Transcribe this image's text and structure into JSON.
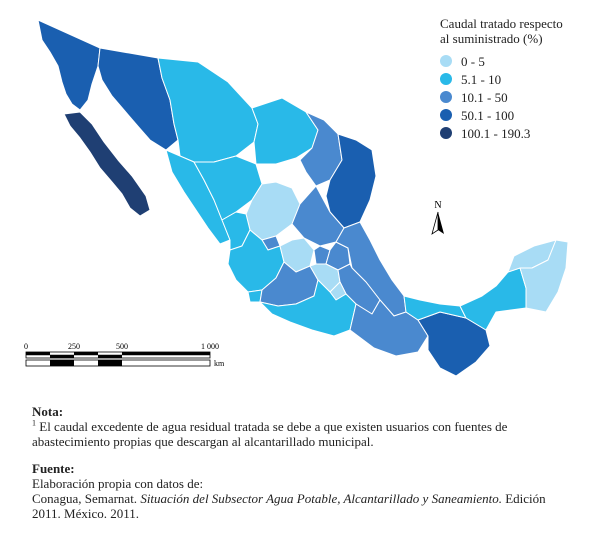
{
  "legend": {
    "title_line1": "Caudal tratado respecto",
    "title_line2": "al suministrado (%)",
    "classes": [
      {
        "label": "0 - 5",
        "color": "#a8dcf5"
      },
      {
        "label": "5.1 - 10",
        "color": "#29b9e8"
      },
      {
        "label": "10.1 - 50",
        "color": "#4a89cf"
      },
      {
        "label": "50.1 - 100",
        "color": "#1a5fb0"
      },
      {
        "label": "100.1 - 190.3",
        "color": "#1f3f73"
      }
    ]
  },
  "north_arrow": {
    "label": "N"
  },
  "scale_bar": {
    "ticks": [
      "0",
      "250",
      "500",
      "1 000"
    ],
    "unit": "km"
  },
  "note": {
    "heading": "Nota:",
    "marker": "1",
    "text": "El caudal excedente de agua residual tratada se debe a que existen usuarios con fuentes de abastecimiento propias que descargan al alcantarillado municipal."
  },
  "source": {
    "heading": "Fuente:",
    "line1": "Elaboración propia con datos de:",
    "authors": "Conagua, Semarnat. ",
    "title": "Situación del Subsector Agua Potable, Alcantarillado y Saneamiento.",
    "edition": " Edición 2011. México. 2011."
  }
}
